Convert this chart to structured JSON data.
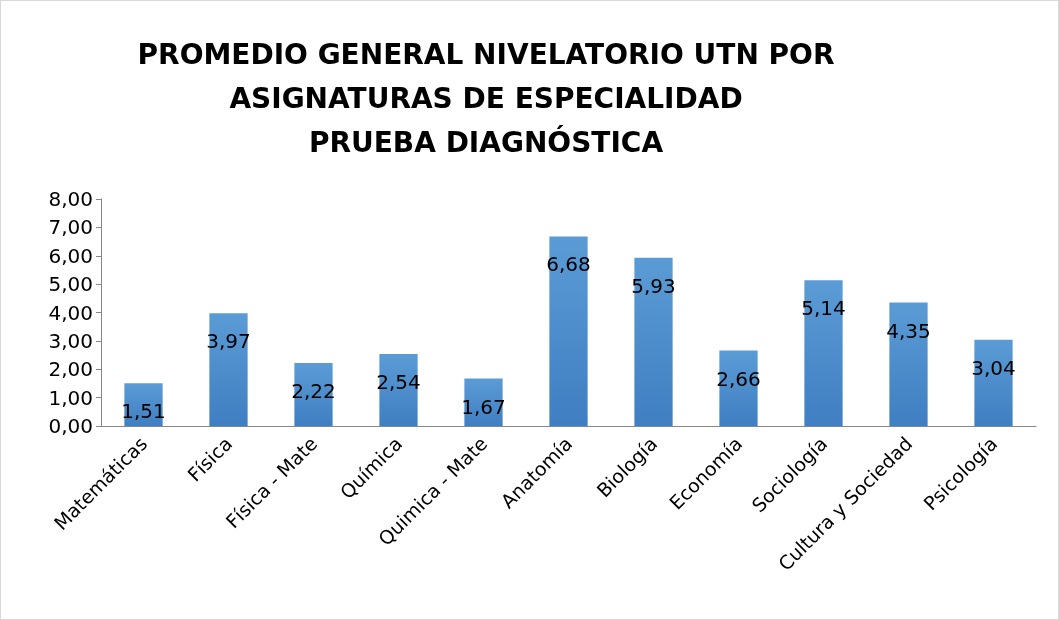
{
  "chart_data": {
    "type": "bar",
    "title": "PROMEDIO GENERAL NIVELATORIO UTN POR\nASIGNATURAS DE ESPECIALIDAD\nPRUEBA DIAGNÓSTICA",
    "categories": [
      "Matemáticas",
      "Física",
      "Física - Mate",
      "Química",
      "Quimica - Mate",
      "Anatomía",
      "Biología",
      "Economía",
      "Sociología",
      "Cultura y Sociedad",
      "Psicología"
    ],
    "values": [
      1.51,
      3.97,
      2.22,
      2.54,
      1.67,
      6.68,
      5.93,
      2.66,
      5.14,
      4.35,
      3.04
    ],
    "value_labels": [
      "1,51",
      "3,97",
      "2,22",
      "2,54",
      "1,67",
      "6,68",
      "5,93",
      "2,66",
      "5,14",
      "4,35",
      "3,04"
    ],
    "color": "#5b9bd5",
    "ylim": [
      0,
      8
    ],
    "yticks": [
      {
        "value": 0,
        "label": "0,00"
      },
      {
        "value": 1,
        "label": "1,00"
      },
      {
        "value": 2,
        "label": "2,00"
      },
      {
        "value": 3,
        "label": "3,00"
      },
      {
        "value": 4,
        "label": "4,00"
      },
      {
        "value": 5,
        "label": "5,00"
      },
      {
        "value": 6,
        "label": "6,00"
      },
      {
        "value": 7,
        "label": "7,00"
      },
      {
        "value": 8,
        "label": "8,00"
      }
    ],
    "grid": false
  }
}
